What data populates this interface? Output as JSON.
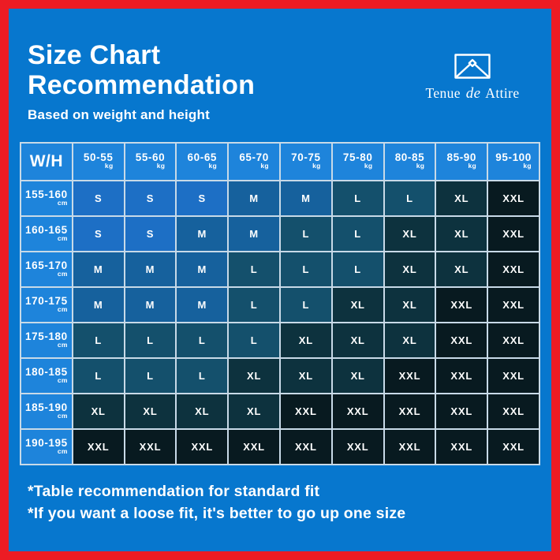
{
  "header": {
    "title_line1": "Size Chart",
    "title_line2": "Recommendation",
    "subtitle": "Based on weight and height"
  },
  "brand": {
    "word1": "Tenue",
    "word2": "de",
    "word3": "Attire",
    "icon": "hanger-frame-icon"
  },
  "footnotes": [
    "*Table recommendation for standard fit",
    "*If you want a loose fit, it's better to go up one size"
  ],
  "colors": {
    "frame_red": "#EC1C24",
    "background_blue": "#0777CE",
    "header_cell_blue": "#1E84DB",
    "grid_line": "#C8DAE8",
    "text_white": "#FFFFFF"
  },
  "chart_data": {
    "type": "table",
    "title": "Size Chart Recommendation",
    "subtitle": "Based on weight and height",
    "corner_label": "W/H",
    "column_unit": "kg",
    "row_unit": "cm",
    "columns": [
      "50-55",
      "55-60",
      "60-65",
      "65-70",
      "70-75",
      "75-80",
      "80-85",
      "85-90",
      "95-100"
    ],
    "rows": [
      "155-160",
      "160-165",
      "165-170",
      "170-175",
      "175-180",
      "180-185",
      "185-190",
      "190-195"
    ],
    "values": [
      [
        "S",
        "S",
        "S",
        "M",
        "M",
        "L",
        "L",
        "XL",
        "XXL"
      ],
      [
        "S",
        "S",
        "M",
        "M",
        "L",
        "L",
        "XL",
        "XL",
        "XXL"
      ],
      [
        "M",
        "M",
        "M",
        "L",
        "L",
        "L",
        "XL",
        "XL",
        "XXL"
      ],
      [
        "M",
        "M",
        "M",
        "L",
        "L",
        "XL",
        "XL",
        "XXL",
        "XXL"
      ],
      [
        "L",
        "L",
        "L",
        "L",
        "XL",
        "XL",
        "XL",
        "XXL",
        "XXL"
      ],
      [
        "L",
        "L",
        "L",
        "XL",
        "XL",
        "XL",
        "XXL",
        "XXL",
        "XXL"
      ],
      [
        "XL",
        "XL",
        "XL",
        "XL",
        "XXL",
        "XXL",
        "XXL",
        "XXL",
        "XXL"
      ],
      [
        "XXL",
        "XXL",
        "XXL",
        "XXL",
        "XXL",
        "XXL",
        "XXL",
        "XXL",
        "XXL"
      ]
    ],
    "size_colors": {
      "S": "#1D6FC5",
      "M": "#16619D",
      "L": "#14506C",
      "XL": "#0D323E",
      "XXL": "#081A20"
    }
  }
}
